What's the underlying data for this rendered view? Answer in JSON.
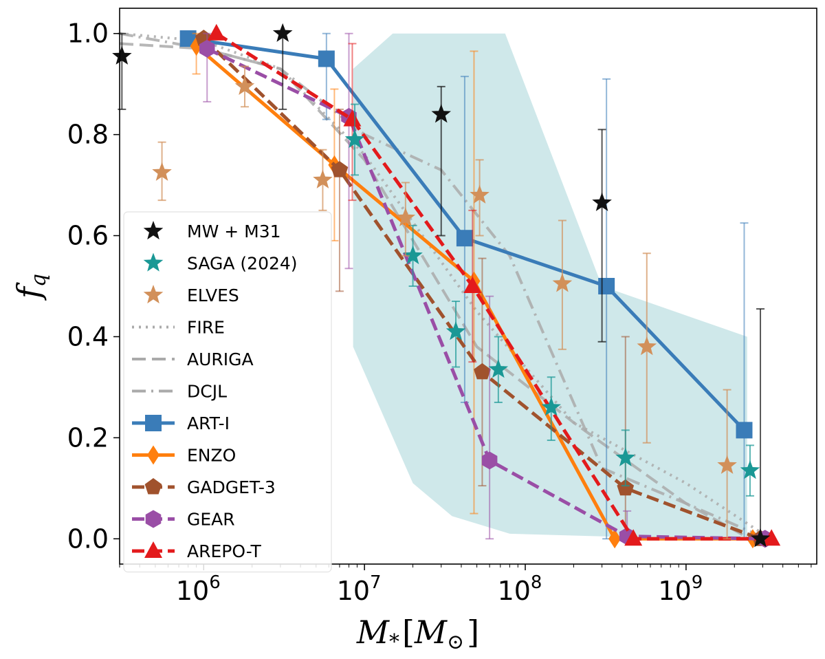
{
  "chart_data": {
    "type": "line",
    "x_scale": "log",
    "xlim": [
      300000,
      6500000000
    ],
    "ylim": [
      -0.05,
      1.05
    ],
    "xlabel": {
      "main": "M",
      "sub": "*",
      "bracket_open": "[",
      "unit": "M",
      "unit_sub": "⊙",
      "bracket_close": "]"
    },
    "ylabel": {
      "main": "f",
      "sub": "q"
    },
    "x_ticks": [
      {
        "value": 1000000,
        "base": "10",
        "exp": "6"
      },
      {
        "value": 10000000,
        "base": "10",
        "exp": "7"
      },
      {
        "value": 100000000,
        "base": "10",
        "exp": "8"
      },
      {
        "value": 1000000000,
        "base": "10",
        "exp": "9"
      }
    ],
    "y_ticks": [
      {
        "value": 0.0,
        "label": "0.0"
      },
      {
        "value": 0.2,
        "label": "0.2"
      },
      {
        "value": 0.4,
        "label": "0.4"
      },
      {
        "value": 0.6,
        "label": "0.6"
      },
      {
        "value": 0.8,
        "label": "0.8"
      },
      {
        "value": 1.0,
        "label": "1.0"
      }
    ],
    "shaded_band": {
      "color": "#a7d5d8",
      "upper": [
        [
          8500000,
          0.93
        ],
        [
          15000000,
          1.0
        ],
        [
          75000000,
          1.0
        ],
        [
          300000000,
          0.5
        ],
        [
          2400000000,
          0.4
        ]
      ],
      "lower": [
        [
          2400000000,
          0.0
        ],
        [
          1000000000,
          0.0
        ],
        [
          80000000,
          0.01
        ],
        [
          35000000,
          0.045
        ],
        [
          20000000,
          0.11
        ],
        [
          8500000,
          0.38
        ]
      ]
    },
    "reference_lines": [
      {
        "name": "FIRE",
        "color": "#aaaaaa",
        "dash": "3 7",
        "x": [
          300000,
          1000000,
          3000000,
          10000000,
          50000000,
          200000000,
          1000000000,
          3000000000
        ],
        "y": [
          1.0,
          0.985,
          0.93,
          0.76,
          0.45,
          0.23,
          0.11,
          0.01
        ]
      },
      {
        "name": "AURIGA",
        "color": "#aaaaaa",
        "dash": "20 9",
        "x": [
          300000,
          1000000,
          3000000,
          10000000,
          50000000,
          200000000,
          1000000000,
          2500000000
        ],
        "y": [
          0.98,
          0.97,
          0.93,
          0.75,
          0.38,
          0.23,
          0.07,
          0.0
        ]
      },
      {
        "name": "DCJL",
        "color": "#aaaaaa",
        "dash": "20 8 3 8",
        "x": [
          300000,
          1000000,
          3000000,
          10000000,
          30000000,
          80000000,
          300000000,
          1000000000,
          2700000000
        ],
        "y": [
          1.0,
          0.97,
          0.93,
          0.8,
          0.73,
          0.56,
          0.14,
          0.07,
          0.01
        ]
      }
    ],
    "series": [
      {
        "name": "ART-I",
        "color": "#3a7cb8",
        "dash": "",
        "marker": "square",
        "x": [
          800000,
          5800000,
          42000000,
          320000000,
          2300000000
        ],
        "y": [
          0.99,
          0.95,
          0.595,
          0.5,
          0.215
        ],
        "yerr_low": [
          0.99,
          0.83,
          0.27,
          0.0,
          0.0
        ],
        "yerr_high": [
          1.0,
          1.0,
          0.915,
          0.91,
          0.625
        ]
      },
      {
        "name": "ENZO",
        "color": "#ff7f0e",
        "dash": "",
        "marker": "diamond",
        "x": [
          900000,
          6500000,
          48000000,
          360000000,
          2600000000
        ],
        "y": [
          0.975,
          0.74,
          0.51,
          0.0,
          0.0
        ],
        "yerr_low": [
          0.92,
          0.59,
          0.05,
          0.0,
          0.0
        ],
        "yerr_high": [
          1.0,
          0.89,
          0.965,
          0.0,
          0.0
        ]
      },
      {
        "name": "GADGET-3",
        "color": "#a0522d",
        "dash": "18 8",
        "marker": "pentagon",
        "x": [
          1000000,
          7000000,
          54000000,
          420000000,
          2900000000
        ],
        "y": [
          0.99,
          0.73,
          0.33,
          0.1,
          0.0
        ],
        "yerr_low": [
          0.97,
          0.49,
          0.105,
          0.0,
          0.0
        ],
        "yerr_high": [
          1.0,
          0.85,
          0.555,
          0.4,
          0.0
        ]
      },
      {
        "name": "GEAR",
        "color": "#9a4ea6",
        "dash": "18 8",
        "marker": "hexagon",
        "x": [
          1050000,
          8000000,
          60000000,
          430000000,
          3100000000
        ],
        "y": [
          0.97,
          0.835,
          0.155,
          0.005,
          0.0
        ],
        "yerr_low": [
          0.865,
          0.535,
          0.0,
          0.0,
          0.0
        ],
        "yerr_high": [
          1.0,
          1.0,
          0.48,
          0.055,
          0.0
        ]
      },
      {
        "name": "AREPO-T",
        "color": "#e31a1c",
        "dash": "18 8",
        "marker": "triangle",
        "x": [
          1200000,
          8400000,
          47000000,
          470000000,
          3400000000
        ],
        "y": [
          1.0,
          0.83,
          0.5,
          0.0,
          0.0
        ],
        "yerr_low": [
          1.0,
          0.67,
          0.35,
          0.0,
          0.0
        ],
        "yerr_high": [
          1.0,
          0.98,
          0.65,
          0.0,
          0.0
        ]
      }
    ],
    "observations": [
      {
        "name": "MW + M31",
        "color": "#111111",
        "x": [
          310000,
          3100000,
          30000000,
          300000000,
          2900000000
        ],
        "y": [
          0.955,
          1.0,
          0.84,
          0.665,
          0.0
        ],
        "yerr_low": [
          0.85,
          0.85,
          0.6,
          0.39,
          0.0
        ],
        "yerr_high": [
          1.0,
          1.0,
          0.895,
          0.81,
          0.455
        ]
      },
      {
        "name": "SAGA (2024)",
        "color": "#1a9895",
        "x": [
          8700000,
          20000000,
          37000000,
          68000000,
          145000000,
          420000000,
          2500000000
        ],
        "y": [
          0.79,
          0.56,
          0.41,
          0.335,
          0.26,
          0.16,
          0.135
        ],
        "yerr_low": [
          0.72,
          0.5,
          0.34,
          0.27,
          0.195,
          0.105,
          0.085
        ],
        "yerr_high": [
          0.86,
          0.62,
          0.47,
          0.4,
          0.32,
          0.215,
          0.185
        ]
      },
      {
        "name": "ELVES",
        "color": "#d2905a",
        "x": [
          550000,
          1800000,
          5500000,
          18000000,
          52000000,
          170000000,
          570000000,
          1800000000
        ],
        "y": [
          0.725,
          0.895,
          0.71,
          0.635,
          0.68,
          0.505,
          0.38,
          0.145
        ],
        "yerr_low": [
          0.67,
          0.855,
          0.65,
          0.56,
          0.6,
          0.375,
          0.19,
          0.0
        ],
        "yerr_high": [
          0.785,
          0.935,
          0.77,
          0.705,
          0.75,
          0.63,
          0.565,
          0.295
        ]
      }
    ],
    "legend": {
      "position": "lower-left",
      "entries": [
        {
          "label": "MW + M31",
          "kind": "star",
          "color": "#111111"
        },
        {
          "label": "SAGA (2024)",
          "kind": "star",
          "color": "#1a9895"
        },
        {
          "label": "ELVES",
          "kind": "star",
          "color": "#d2905a"
        },
        {
          "label": "FIRE",
          "kind": "line",
          "color": "#aaaaaa",
          "dash": "3 7"
        },
        {
          "label": "AURIGA",
          "kind": "line",
          "color": "#aaaaaa",
          "dash": "20 9"
        },
        {
          "label": "DCJL",
          "kind": "line",
          "color": "#aaaaaa",
          "dash": "20 8 3 8"
        },
        {
          "label": "ART-I",
          "kind": "line-marker",
          "marker": "square",
          "color": "#3a7cb8",
          "dash": ""
        },
        {
          "label": "ENZO",
          "kind": "line-marker",
          "marker": "diamond",
          "color": "#ff7f0e",
          "dash": ""
        },
        {
          "label": "GADGET-3",
          "kind": "line-marker",
          "marker": "pentagon",
          "color": "#a0522d",
          "dash": "18 8"
        },
        {
          "label": "GEAR",
          "kind": "line-marker",
          "marker": "hexagon",
          "color": "#9a4ea6",
          "dash": "18 8"
        },
        {
          "label": "AREPO-T",
          "kind": "line-marker",
          "marker": "triangle",
          "color": "#e31a1c",
          "dash": "18 8"
        }
      ]
    }
  }
}
